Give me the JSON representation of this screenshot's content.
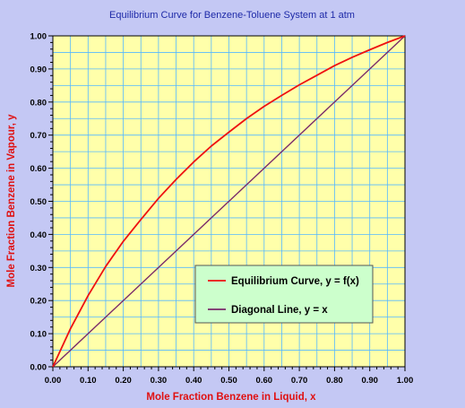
{
  "chart_data": {
    "type": "line",
    "title": "Equilibrium Curve for Benzene-Toluene System at 1 atm",
    "xlabel": "Mole Fraction Benzene in Liquid, x",
    "ylabel": "Mole Fraction Benzene in Vapour, y",
    "xlim": [
      0,
      1
    ],
    "ylim": [
      0,
      1
    ],
    "x_ticks": [
      "0.00",
      "0.10",
      "0.20",
      "0.30",
      "0.40",
      "0.50",
      "0.60",
      "0.70",
      "0.80",
      "0.90",
      "1.00"
    ],
    "y_ticks": [
      "0.00",
      "0.10",
      "0.20",
      "0.30",
      "0.40",
      "0.50",
      "0.60",
      "0.70",
      "0.80",
      "0.90",
      "1.00"
    ],
    "grid": true,
    "legend_position": "lower-right",
    "plot_background": "#ffffaa",
    "series": [
      {
        "name": "Equilibrium Curve, y = f(x)",
        "color": "#ee1111",
        "x": [
          0,
          0.05,
          0.1,
          0.15,
          0.2,
          0.25,
          0.3,
          0.35,
          0.4,
          0.45,
          0.5,
          0.55,
          0.6,
          0.65,
          0.7,
          0.75,
          0.8,
          0.85,
          0.9,
          0.95,
          1.0
        ],
        "y": [
          0,
          0.115,
          0.215,
          0.303,
          0.379,
          0.445,
          0.509,
          0.566,
          0.619,
          0.667,
          0.709,
          0.75,
          0.787,
          0.82,
          0.852,
          0.881,
          0.91,
          0.935,
          0.958,
          0.98,
          1.0
        ]
      },
      {
        "name": "Diagonal Line, y = x",
        "color": "#7a2a6a",
        "x": [
          0,
          1
        ],
        "y": [
          0,
          1
        ]
      }
    ]
  }
}
